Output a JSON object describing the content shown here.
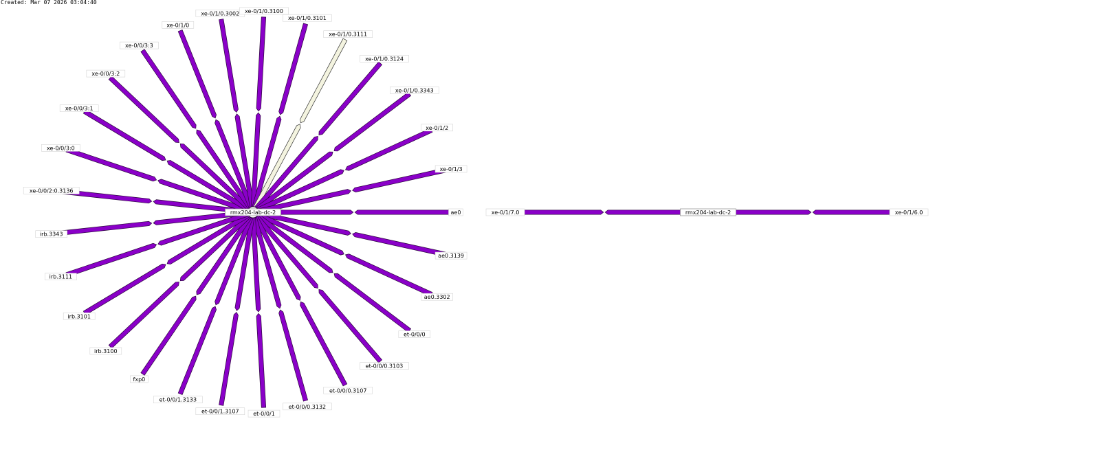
{
  "header": {
    "created": "Created: Mar 07 2026 03:04:40"
  },
  "colors": {
    "link_fill": "#8a00c8",
    "link_stroke": "#2a0a3a",
    "idle_link_fill": "#f4f4e0",
    "idle_link_stroke": "#333333",
    "background": "#ffffff"
  },
  "graphs": [
    {
      "hub": {
        "label": "rmx204-lab-dc-2"
      },
      "interfaces": [
        {
          "label": "ae0",
          "state": "active"
        },
        {
          "label": "ae0.3139",
          "state": "active"
        },
        {
          "label": "ae0.3302",
          "state": "active"
        },
        {
          "label": "et-0/0/0",
          "state": "active"
        },
        {
          "label": "et-0/0/0.3103",
          "state": "active"
        },
        {
          "label": "et-0/0/0.3107",
          "state": "active"
        },
        {
          "label": "et-0/0/0.3132",
          "state": "active"
        },
        {
          "label": "et-0/0/1",
          "state": "active"
        },
        {
          "label": "et-0/0/1.3107",
          "state": "active"
        },
        {
          "label": "et-0/0/1.3133",
          "state": "active"
        },
        {
          "label": "fxp0",
          "state": "active"
        },
        {
          "label": "irb.3100",
          "state": "active"
        },
        {
          "label": "irb.3101",
          "state": "active"
        },
        {
          "label": "irb.3111",
          "state": "active"
        },
        {
          "label": "irb.3343",
          "state": "active"
        },
        {
          "label": "xe-0/0/2:0.3136",
          "state": "active"
        },
        {
          "label": "xe-0/0/3:0",
          "state": "active"
        },
        {
          "label": "xe-0/0/3:1",
          "state": "active"
        },
        {
          "label": "xe-0/0/3:2",
          "state": "active"
        },
        {
          "label": "xe-0/0/3:3",
          "state": "active"
        },
        {
          "label": "xe-0/1/0",
          "state": "active"
        },
        {
          "label": "xe-0/1/0.3002",
          "state": "active"
        },
        {
          "label": "xe-0/1/0.3100",
          "state": "active"
        },
        {
          "label": "xe-0/1/0.3101",
          "state": "active"
        },
        {
          "label": "xe-0/1/0.3111",
          "state": "idle"
        },
        {
          "label": "xe-0/1/0.3124",
          "state": "active"
        },
        {
          "label": "xe-0/1/0.3343",
          "state": "active"
        },
        {
          "label": "xe-0/1/2",
          "state": "active"
        },
        {
          "label": "xe-0/1/3",
          "state": "active"
        }
      ]
    },
    {
      "hub": {
        "label": "rmx204-lab-dc-2"
      },
      "interfaces": [
        {
          "label": "xe-0/1/7.0",
          "state": "active"
        },
        {
          "label": "xe-0/1/6.0",
          "state": "active"
        }
      ]
    }
  ]
}
